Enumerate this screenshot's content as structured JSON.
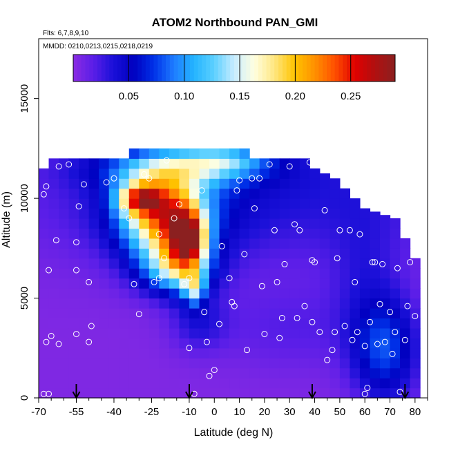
{
  "chart_data": {
    "type": "heatmap",
    "title": "ATOM2 Northbound PAN_GMI",
    "flights_note": "Flts: 6,7,8,9,10",
    "dates_note": "MMDD: 0210,0213,0215,0218,0219",
    "xlabel": "Latitude (deg N)",
    "ylabel": "Altitude (m)",
    "xlim": [
      -70,
      85
    ],
    "ylim": [
      0,
      18000
    ],
    "x_ticks": [
      "-70",
      "-55",
      "-40",
      "-25",
      "-10",
      "0",
      "10",
      "20",
      "30",
      "40",
      "50",
      "60",
      "70",
      "80"
    ],
    "x_tick_values": [
      -70,
      -55,
      -40,
      -25,
      -10,
      0,
      10,
      20,
      30,
      40,
      50,
      60,
      70,
      80
    ],
    "x_minor_ticks": [
      -65,
      -60,
      -50,
      -45,
      -35,
      -30,
      -20,
      -15,
      -5,
      5,
      15,
      25,
      35,
      45,
      55,
      65,
      75,
      85
    ],
    "y_ticks": [
      "0",
      "5000",
      "10000",
      "15000"
    ],
    "y_tick_values": [
      0,
      5000,
      10000,
      15000
    ],
    "colorbar": {
      "min": 0.0,
      "max": 0.29,
      "ticks": [
        "0.05",
        "0.10",
        "0.15",
        "0.20",
        "0.25"
      ],
      "tick_values": [
        0.05,
        0.1,
        0.15,
        0.2,
        0.25
      ],
      "colors": [
        "#8a2be2",
        "#5a1ee8",
        "#1a10d8",
        "#0000c0",
        "#0030e8",
        "#1e7cff",
        "#24b4ff",
        "#5cd0ff",
        "#c8ecff",
        "#ffffe0",
        "#ffe680",
        "#ffc400",
        "#ff9000",
        "#ff5000",
        "#e00000",
        "#b01010",
        "#8b2020"
      ]
    },
    "arrows_at_latitude": [
      -55,
      -10,
      39,
      76
    ],
    "field": {
      "x": [
        -68,
        -64,
        -60,
        -56,
        -52,
        -48,
        -44,
        -40,
        -36,
        -32,
        -28,
        -24,
        -20,
        -16,
        -12,
        -8,
        -4,
        0,
        4,
        8,
        12,
        16,
        20,
        24,
        28,
        32,
        36,
        40,
        44,
        48,
        52,
        56,
        60,
        64,
        68,
        72,
        76,
        80
      ],
      "y": [
        250,
        750,
        1250,
        1750,
        2250,
        2750,
        3250,
        3750,
        4250,
        4750,
        5250,
        5750,
        6250,
        6750,
        7250,
        7750,
        8250,
        8750,
        9250,
        9750,
        10250,
        10750,
        11250,
        11750,
        12250
      ],
      "background": 0.004,
      "blobs": [
        {
          "x": 10,
          "y": 10500,
          "sx": 60,
          "sy": 2600,
          "a": 0.035
        },
        {
          "x": -18,
          "y": 9300,
          "sx": 16,
          "sy": 1700,
          "a": 0.07
        },
        {
          "x": -30,
          "y": 10000,
          "sx": 6,
          "sy": 500,
          "a": 0.12
        },
        {
          "x": -22,
          "y": 9200,
          "sx": 10,
          "sy": 1400,
          "a": 0.13
        },
        {
          "x": -12,
          "y": 8000,
          "sx": 6,
          "sy": 1300,
          "a": 0.11
        },
        {
          "x": -9,
          "y": 8000,
          "sx": 4,
          "sy": 800,
          "a": 0.1
        },
        {
          "x": -15,
          "y": 6500,
          "sx": 10,
          "sy": 900,
          "a": 0.1
        },
        {
          "x": -8,
          "y": 5500,
          "sx": 3,
          "sy": 600,
          "a": 0.09
        },
        {
          "x": -14,
          "y": 11500,
          "sx": 22,
          "sy": 700,
          "a": 0.08
        },
        {
          "x": 4,
          "y": 12000,
          "sx": 12,
          "sy": 500,
          "a": 0.06
        },
        {
          "x": 68,
          "y": 2400,
          "sx": 9,
          "sy": 1800,
          "a": 0.07
        },
        {
          "x": 60,
          "y": 6000,
          "sx": 10,
          "sy": 2500,
          "a": 0.02
        },
        {
          "x": -6,
          "y": 3800,
          "sx": 8,
          "sy": 1000,
          "a": 0.03
        },
        {
          "x": 30,
          "y": 3500,
          "sx": 20,
          "sy": 1500,
          "a": 0.015
        }
      ],
      "mask_top": [
        {
          "x": -68,
          "top": 11500
        },
        {
          "x": -64,
          "top": 12000
        },
        {
          "x": -56,
          "top": 12000
        },
        {
          "x": -36,
          "top": 12000
        },
        {
          "x": -32,
          "top": 12500
        },
        {
          "x": 12,
          "top": 12500
        },
        {
          "x": 16,
          "top": 12000
        },
        {
          "x": 36,
          "top": 12000
        },
        {
          "x": 40,
          "top": 11500
        },
        {
          "x": 48,
          "top": 11000
        },
        {
          "x": 56,
          "top": 10000
        },
        {
          "x": 60,
          "top": 9500
        },
        {
          "x": 72,
          "top": 9000
        },
        {
          "x": 80,
          "top": 7000
        }
      ]
    },
    "observations": [
      [
        -68,
        200
      ],
      [
        -66,
        200
      ],
      [
        -67,
        2800
      ],
      [
        -65,
        3100
      ],
      [
        -62,
        2700
      ],
      [
        -66,
        6400
      ],
      [
        -63,
        7900
      ],
      [
        -68,
        10200
      ],
      [
        -67,
        10600
      ],
      [
        -62,
        11600
      ],
      [
        -58,
        11700
      ],
      [
        -55,
        7800
      ],
      [
        -54,
        9600
      ],
      [
        -52,
        10700
      ],
      [
        -55,
        6400
      ],
      [
        -50,
        5800
      ],
      [
        -49,
        3600
      ],
      [
        -50,
        2800
      ],
      [
        -55,
        3200
      ],
      [
        -43,
        10800
      ],
      [
        -40,
        11000
      ],
      [
        -36,
        9500
      ],
      [
        -34,
        9000
      ],
      [
        -32,
        5700
      ],
      [
        -30,
        4200
      ],
      [
        -28,
        11200
      ],
      [
        -26,
        11000
      ],
      [
        -24,
        5800
      ],
      [
        -22,
        8200
      ],
      [
        -22,
        6000
      ],
      [
        -20,
        7000
      ],
      [
        -19,
        11900
      ],
      [
        -16,
        9000
      ],
      [
        -14,
        9700
      ],
      [
        -12,
        5700
      ],
      [
        -10,
        6000
      ],
      [
        -10,
        2500
      ],
      [
        -8,
        200
      ],
      [
        -5,
        10400
      ],
      [
        -4,
        4300
      ],
      [
        -3,
        2800
      ],
      [
        -2,
        1100
      ],
      [
        0,
        1400
      ],
      [
        2,
        3700
      ],
      [
        3,
        7600
      ],
      [
        6,
        6000
      ],
      [
        7,
        4800
      ],
      [
        8,
        4600
      ],
      [
        9,
        10400
      ],
      [
        10,
        10900
      ],
      [
        12,
        7200
      ],
      [
        13,
        2400
      ],
      [
        15,
        11000
      ],
      [
        16,
        9500
      ],
      [
        18,
        11000
      ],
      [
        19,
        5600
      ],
      [
        20,
        3200
      ],
      [
        22,
        11700
      ],
      [
        24,
        8400
      ],
      [
        25,
        5800
      ],
      [
        26,
        3000
      ],
      [
        27,
        4000
      ],
      [
        28,
        6700
      ],
      [
        30,
        11600
      ],
      [
        32,
        8700
      ],
      [
        33,
        4000
      ],
      [
        34,
        8400
      ],
      [
        36,
        4600
      ],
      [
        38,
        11800
      ],
      [
        39,
        6900
      ],
      [
        39,
        3800
      ],
      [
        40,
        6800
      ],
      [
        42,
        3300
      ],
      [
        44,
        9400
      ],
      [
        45,
        1900
      ],
      [
        47,
        2400
      ],
      [
        48,
        3300
      ],
      [
        49,
        7000
      ],
      [
        50,
        8400
      ],
      [
        52,
        3600
      ],
      [
        54,
        8400
      ],
      [
        55,
        2900
      ],
      [
        56,
        5800
      ],
      [
        57,
        3300
      ],
      [
        58,
        8200
      ],
      [
        60,
        2600
      ],
      [
        61,
        500
      ],
      [
        62,
        3800
      ],
      [
        63,
        6800
      ],
      [
        64,
        6800
      ],
      [
        65,
        2700
      ],
      [
        66,
        4700
      ],
      [
        67,
        6700
      ],
      [
        68,
        2800
      ],
      [
        70,
        4300
      ],
      [
        71,
        2200
      ],
      [
        72,
        3300
      ],
      [
        73,
        6500
      ],
      [
        75,
        9600
      ],
      [
        76,
        2900
      ],
      [
        77,
        4600
      ],
      [
        78,
        6800
      ],
      [
        79,
        8500
      ],
      [
        80,
        4100
      ],
      [
        74,
        300
      ],
      [
        70,
        9600
      ],
      [
        60,
        200
      ]
    ]
  }
}
